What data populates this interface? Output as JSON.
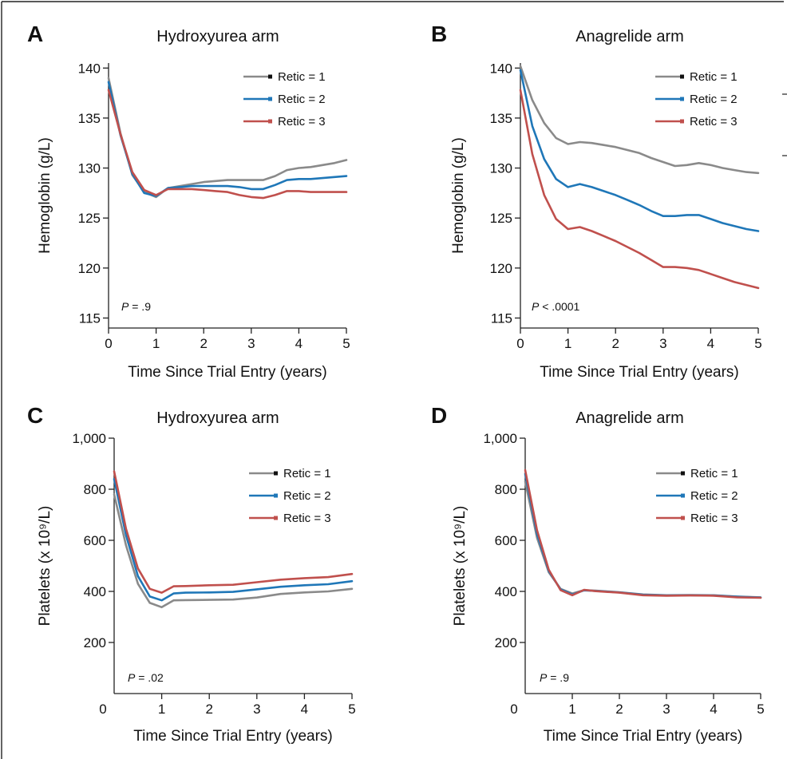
{
  "colors": {
    "retic1": "#8a8a8a",
    "retic2": "#1f77b8",
    "retic3": "#c0504d",
    "axis": "#222222"
  },
  "chart_data": [
    {
      "type": "line",
      "letter": "A",
      "title": "Hydroxyurea arm",
      "xlabel": "Time Since Trial Entry (years)",
      "ylabel": "Hemoglobin (g/L)",
      "xlim": [
        0,
        5
      ],
      "ylim": [
        114,
        140.5
      ],
      "xticks": [
        0,
        1,
        2,
        3,
        4,
        5
      ],
      "xtick_labels": [
        "0",
        "1",
        "2",
        "3",
        "4",
        "5"
      ],
      "yticks": [
        115,
        120,
        125,
        130,
        135,
        140
      ],
      "ytick_labels": [
        "115",
        "120",
        "125",
        "130",
        "135",
        "140"
      ],
      "legend_position": "top-right",
      "pvalue": {
        "label": "P",
        "text": " = .9"
      },
      "series": [
        {
          "name": "Retic = 1",
          "color_key": "retic1",
          "x": [
            0,
            0.25,
            0.5,
            0.75,
            1,
            1.25,
            1.5,
            1.75,
            2,
            2.25,
            2.5,
            2.75,
            3,
            3.25,
            3.5,
            3.75,
            4,
            4.25,
            4.5,
            4.75,
            5
          ],
          "y": [
            139.0,
            133.5,
            129.3,
            127.6,
            127.1,
            128.0,
            128.2,
            128.4,
            128.6,
            128.7,
            128.8,
            128.8,
            128.8,
            128.8,
            129.2,
            129.8,
            130.0,
            130.1,
            130.3,
            130.5,
            130.8
          ]
        },
        {
          "name": "Retic = 2",
          "color_key": "retic2",
          "x": [
            0,
            0.25,
            0.5,
            0.75,
            1,
            1.25,
            1.5,
            1.75,
            2,
            2.25,
            2.5,
            2.75,
            3,
            3.25,
            3.5,
            3.75,
            4,
            4.25,
            4.5,
            4.75,
            5
          ],
          "y": [
            138.6,
            133.3,
            129.4,
            127.5,
            127.2,
            128.0,
            128.1,
            128.2,
            128.2,
            128.2,
            128.2,
            128.1,
            127.9,
            127.9,
            128.3,
            128.8,
            128.9,
            128.9,
            129.0,
            129.1,
            129.2
          ]
        },
        {
          "name": "Retic = 3",
          "color_key": "retic3",
          "x": [
            0,
            0.25,
            0.5,
            0.75,
            1,
            1.25,
            1.5,
            1.75,
            2,
            2.25,
            2.5,
            2.75,
            3,
            3.25,
            3.5,
            3.75,
            4,
            4.25,
            4.5,
            4.75,
            5
          ],
          "y": [
            137.8,
            133.4,
            129.6,
            127.8,
            127.3,
            127.9,
            127.9,
            127.9,
            127.8,
            127.7,
            127.6,
            127.3,
            127.1,
            127.0,
            127.3,
            127.7,
            127.7,
            127.6,
            127.6,
            127.6,
            127.6
          ]
        }
      ]
    },
    {
      "type": "line",
      "letter": "B",
      "title": "Anagrelide arm",
      "xlabel": "Time Since Trial Entry (years)",
      "ylabel": "Hemoglobin (g/L)",
      "xlim": [
        0,
        5
      ],
      "ylim": [
        114,
        140.5
      ],
      "xticks": [
        0,
        1,
        2,
        3,
        4,
        5
      ],
      "xtick_labels": [
        "0",
        "1",
        "2",
        "3",
        "4",
        "5"
      ],
      "yticks": [
        115,
        120,
        125,
        130,
        135,
        140
      ],
      "ytick_labels": [
        "115",
        "120",
        "125",
        "130",
        "135",
        "140"
      ],
      "legend_position": "top-right",
      "pvalue": {
        "label": "P",
        "text": " < .0001"
      },
      "series": [
        {
          "name": "Retic = 1",
          "color_key": "retic1",
          "x": [
            0,
            0.25,
            0.5,
            0.75,
            1,
            1.25,
            1.5,
            1.75,
            2,
            2.25,
            2.5,
            2.75,
            3,
            3.25,
            3.5,
            3.75,
            4,
            4.25,
            4.5,
            4.75,
            5
          ],
          "y": [
            140.2,
            136.8,
            134.5,
            133.0,
            132.4,
            132.6,
            132.5,
            132.3,
            132.1,
            131.8,
            131.5,
            131.0,
            130.6,
            130.2,
            130.3,
            130.5,
            130.3,
            130.0,
            129.8,
            129.6,
            129.5
          ]
        },
        {
          "name": "Retic = 2",
          "color_key": "retic2",
          "x": [
            0,
            0.25,
            0.5,
            0.75,
            1,
            1.25,
            1.5,
            1.75,
            2,
            2.25,
            2.5,
            2.75,
            3,
            3.25,
            3.5,
            3.75,
            4,
            4.25,
            4.5,
            4.75,
            5
          ],
          "y": [
            139.8,
            134.2,
            130.9,
            128.9,
            128.1,
            128.4,
            128.1,
            127.7,
            127.3,
            126.8,
            126.3,
            125.7,
            125.2,
            125.2,
            125.3,
            125.3,
            124.9,
            124.5,
            124.2,
            123.9,
            123.7
          ]
        },
        {
          "name": "Retic = 3",
          "color_key": "retic3",
          "x": [
            0,
            0.25,
            0.5,
            0.75,
            1,
            1.25,
            1.5,
            1.75,
            2,
            2.25,
            2.5,
            2.75,
            3,
            3.25,
            3.5,
            3.75,
            4,
            4.25,
            4.5,
            4.75,
            5
          ],
          "y": [
            137.8,
            131.4,
            127.3,
            124.9,
            123.9,
            124.1,
            123.7,
            123.2,
            122.7,
            122.1,
            121.5,
            120.8,
            120.1,
            120.1,
            120.0,
            119.8,
            119.4,
            119.0,
            118.6,
            118.3,
            118.0
          ]
        }
      ]
    },
    {
      "type": "line",
      "letter": "C",
      "title": "Hydroxyurea arm",
      "xlabel": "Time Since Trial Entry (years)",
      "ylabel": "Platelets (x 10⁹/L)",
      "xlim": [
        0,
        5
      ],
      "ylim": [
        0,
        1000
      ],
      "xticks": [
        1,
        2,
        3,
        4,
        5
      ],
      "xtick_labels": [
        "1",
        "2",
        "3",
        "4",
        "5"
      ],
      "yticks": [
        200,
        400,
        600,
        800,
        1000
      ],
      "ytick_labels": [
        "200",
        "400",
        "600",
        "800",
        "1,000"
      ],
      "origin_label": "0",
      "legend_position": "top-right",
      "pvalue": {
        "label": "P",
        "text": " = .02"
      },
      "series": [
        {
          "name": "Retic = 1",
          "color_key": "retic1",
          "x": [
            0,
            0.25,
            0.5,
            0.75,
            1,
            1.25,
            1.5,
            2,
            2.5,
            3,
            3.5,
            4,
            4.5,
            5
          ],
          "y": [
            780,
            580,
            430,
            355,
            338,
            365,
            366,
            367,
            368,
            376,
            390,
            396,
            400,
            410
          ]
        },
        {
          "name": "Retic = 2",
          "color_key": "retic2",
          "x": [
            0,
            0.25,
            0.5,
            0.75,
            1,
            1.25,
            1.5,
            2,
            2.5,
            3,
            3.5,
            4,
            4.5,
            5
          ],
          "y": [
            840,
            620,
            460,
            380,
            365,
            392,
            395,
            396,
            398,
            408,
            418,
            424,
            428,
            440
          ]
        },
        {
          "name": "Retic = 3",
          "color_key": "retic3",
          "x": [
            0,
            0.25,
            0.5,
            0.75,
            1,
            1.25,
            1.5,
            2,
            2.5,
            3,
            3.5,
            4,
            4.5,
            5
          ],
          "y": [
            870,
            645,
            490,
            410,
            395,
            420,
            421,
            424,
            426,
            436,
            446,
            452,
            456,
            468
          ]
        }
      ]
    },
    {
      "type": "line",
      "letter": "D",
      "title": "Anagrelide arm",
      "xlabel": "Time Since Trial Entry (years)",
      "ylabel": "Platelets (x 10⁹/L)",
      "xlim": [
        0,
        5
      ],
      "ylim": [
        0,
        1000
      ],
      "xticks": [
        1,
        2,
        3,
        4,
        5
      ],
      "xtick_labels": [
        "1",
        "2",
        "3",
        "4",
        "5"
      ],
      "yticks": [
        200,
        400,
        600,
        800,
        1000
      ],
      "ytick_labels": [
        "200",
        "400",
        "600",
        "800",
        "1,000"
      ],
      "origin_label": "0",
      "legend_position": "top-right",
      "pvalue": {
        "label": "P",
        "text": " = .9"
      },
      "series": [
        {
          "name": "Retic = 1",
          "color_key": "retic1",
          "x": [
            0,
            0.25,
            0.5,
            0.75,
            1,
            1.25,
            1.5,
            2,
            2.5,
            3,
            3.5,
            4,
            4.5,
            5
          ],
          "y": [
            830,
            610,
            475,
            410,
            392,
            405,
            403,
            397,
            388,
            385,
            386,
            385,
            380,
            377
          ]
        },
        {
          "name": "Retic = 2",
          "color_key": "retic2",
          "x": [
            0,
            0.25,
            0.5,
            0.75,
            1,
            1.25,
            1.5,
            2,
            2.5,
            3,
            3.5,
            4,
            4.5,
            5
          ],
          "y": [
            860,
            625,
            480,
            408,
            388,
            404,
            402,
            396,
            387,
            384,
            385,
            384,
            379,
            376
          ]
        },
        {
          "name": "Retic = 3",
          "color_key": "retic3",
          "x": [
            0,
            0.25,
            0.5,
            0.75,
            1,
            1.25,
            1.5,
            2,
            2.5,
            3,
            3.5,
            4,
            4.5,
            5
          ],
          "y": [
            875,
            640,
            485,
            405,
            385,
            406,
            401,
            395,
            385,
            383,
            384,
            383,
            377,
            375
          ]
        }
      ]
    }
  ]
}
